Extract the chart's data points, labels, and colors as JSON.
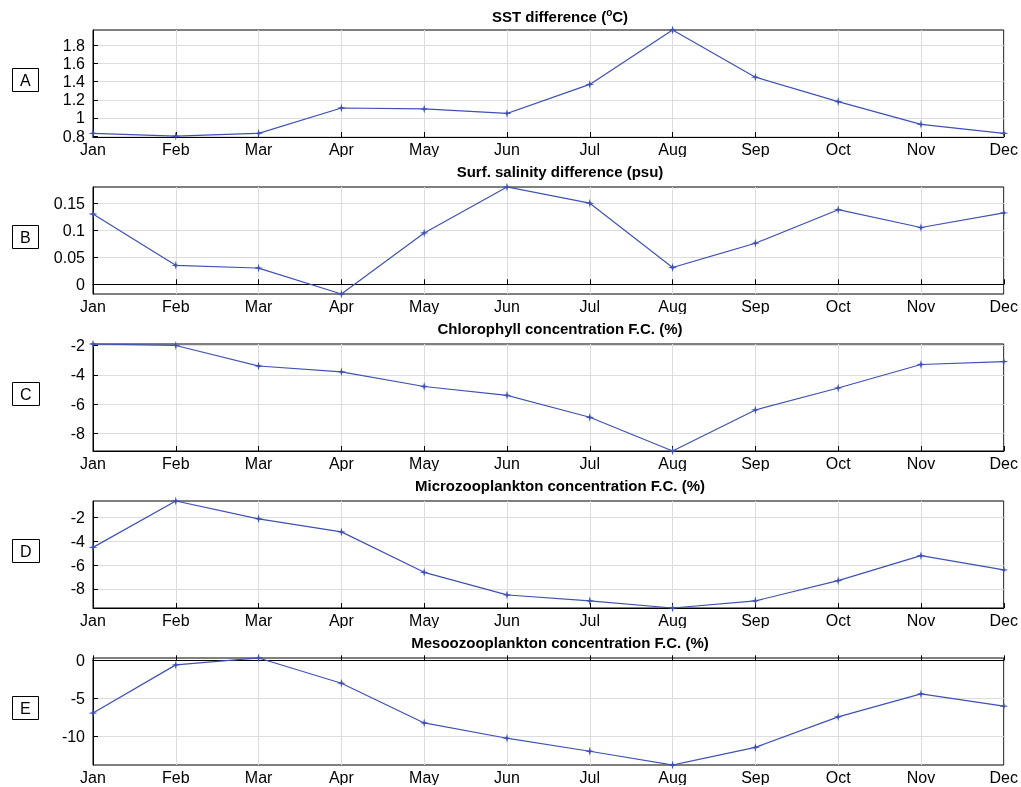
{
  "chart_data": [
    {
      "type": "line",
      "title": "SST difference ($^{o}$C)",
      "annotations": [
        "A"
      ],
      "categories": [
        "Jan",
        "Feb",
        "Mar",
        "Apr",
        "May",
        "Jun",
        "Jul",
        "Aug",
        "Sep",
        "Oct",
        "Nov",
        "Dec"
      ],
      "series": [
        {
          "color": "#3f51b5",
          "values": [
            0.83,
            0.8,
            0.83,
            1.11,
            1.1,
            1.05,
            1.37,
            1.97,
            1.45,
            1.18,
            0.93,
            0.83
          ]
        }
      ],
      "ylim": [
        0.79,
        1.97
      ],
      "yticks": [
        0.8,
        1,
        1.2,
        1.4,
        1.6,
        1.8
      ],
      "grid": true,
      "marker": "star",
      "line_style": "solid"
    },
    {
      "type": "line",
      "title": "Surf. salinity difference (psu)",
      "annotations": [
        "B"
      ],
      "categories": [
        "Jan",
        "Feb",
        "Mar",
        "Apr",
        "May",
        "Jun",
        "Jul",
        "Aug",
        "Sep",
        "Oct",
        "Nov",
        "Dec"
      ],
      "series": [
        {
          "color": "#3f51b5",
          "values": [
            0.13,
            0.035,
            0.03,
            -0.018,
            0.095,
            0.18,
            0.15,
            0.031,
            0.076,
            0.138,
            0.105,
            0.132
          ]
        }
      ],
      "ylim": [
        -0.018,
        0.18
      ],
      "yticks": [
        0,
        0.05,
        0.1,
        0.15
      ],
      "grid": true,
      "marker": "star",
      "line_style": "solid"
    },
    {
      "type": "line",
      "title": "Chlorophyll concentration F.C. (%)",
      "annotations": [
        "C"
      ],
      "categories": [
        "Jan",
        "Feb",
        "Mar",
        "Apr",
        "May",
        "Jun",
        "Jul",
        "Aug",
        "Sep",
        "Oct",
        "Nov",
        "Dec"
      ],
      "series": [
        {
          "color": "#3f51b5",
          "values": [
            -1.9,
            -2.0,
            -3.4,
            -3.8,
            -4.8,
            -5.4,
            -6.9,
            -9.2,
            -6.4,
            -4.9,
            -3.3,
            -3.1
          ]
        }
      ],
      "ylim": [
        -9.2,
        -1.9
      ],
      "yticks": [
        -8,
        -6,
        -4,
        -2
      ],
      "grid": true,
      "marker": "star",
      "line_style": "solid"
    },
    {
      "type": "line",
      "title": "Microzooplankton concentration F.C. (%)",
      "annotations": [
        "D"
      ],
      "categories": [
        "Jan",
        "Feb",
        "Mar",
        "Apr",
        "May",
        "Jun",
        "Jul",
        "Aug",
        "Sep",
        "Oct",
        "Nov",
        "Dec"
      ],
      "series": [
        {
          "color": "#3f51b5",
          "values": [
            -4.5,
            -0.6,
            -2.1,
            -3.2,
            -6.6,
            -8.5,
            -9.0,
            -9.6,
            -9.0,
            -7.3,
            -5.2,
            -6.4
          ]
        }
      ],
      "ylim": [
        -9.6,
        -0.6
      ],
      "yticks": [
        -8,
        -6,
        -4,
        -2
      ],
      "grid": true,
      "marker": "star",
      "line_style": "solid"
    },
    {
      "type": "line",
      "title": "Mesoozooplankton concentration F.C. (%)",
      "annotations": [
        "E"
      ],
      "categories": [
        "Jan",
        "Feb",
        "Mar",
        "Apr",
        "May",
        "Jun",
        "Jul",
        "Aug",
        "Sep",
        "Oct",
        "Nov",
        "Dec"
      ],
      "series": [
        {
          "color": "#3f51b5",
          "values": [
            -6.9,
            -0.6,
            0.3,
            -3.0,
            -8.2,
            -10.2,
            -11.9,
            -13.7,
            -11.4,
            -7.4,
            -4.4,
            -6.0
          ]
        }
      ],
      "ylim": [
        -13.7,
        0.3
      ],
      "yticks": [
        -10,
        -5,
        0
      ],
      "grid": true,
      "marker": "star",
      "line_style": "solid"
    }
  ]
}
